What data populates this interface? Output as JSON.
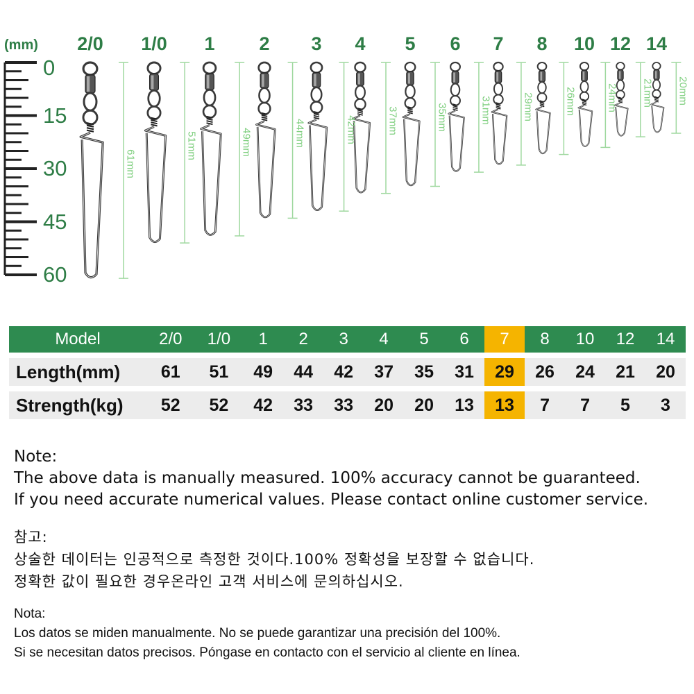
{
  "top_figure": {
    "unit": "(mm)",
    "ruler_labels": [
      "0",
      "15",
      "30",
      "45",
      "60"
    ],
    "models": [
      "2/0",
      "1/0",
      "1",
      "2",
      "3",
      "4",
      "5",
      "6",
      "7",
      "8",
      "10",
      "12",
      "14"
    ],
    "lengths_mm": [
      61,
      51,
      49,
      44,
      42,
      37,
      35,
      31,
      29,
      26,
      24,
      21,
      20
    ],
    "dimension_labels": [
      "61mm",
      "51mm",
      "49mm",
      "44mm",
      "42mm",
      "37mm",
      "35mm",
      "31mm",
      "29mm",
      "26mm",
      "24mm",
      "21mm",
      "20mm"
    ],
    "accent_color": "#2e7d46",
    "dimension_color": "#9fd89f"
  },
  "table": {
    "header_label": "Model",
    "models": [
      "2/0",
      "1/0",
      "1",
      "2",
      "3",
      "4",
      "5",
      "6",
      "7",
      "8",
      "10",
      "12",
      "14"
    ],
    "highlight_model": "7",
    "rows": [
      {
        "label": "Length(mm)",
        "values": [
          "61",
          "51",
          "49",
          "44",
          "42",
          "37",
          "35",
          "31",
          "29",
          "26",
          "24",
          "21",
          "20"
        ]
      },
      {
        "label": "Strength(kg)",
        "values": [
          "52",
          "52",
          "42",
          "33",
          "33",
          "20",
          "20",
          "13",
          "13",
          "7",
          "7",
          "5",
          "3"
        ]
      }
    ],
    "header_color": "#2e8b50",
    "highlight_color": "#f5b400"
  },
  "notes": {
    "en": {
      "title": "Note:",
      "line1": "The above data is manually measured. 100% accuracy cannot be guaranteed.",
      "line2": "If you need accurate numerical values. Please contact online customer service."
    },
    "ko": {
      "title": "참고:",
      "line1": "상술한 데이터는 인공적으로 측정한 것이다.100% 정확성을 보장할 수 없습니다.",
      "line2": "정확한 값이 필요한 경우온라인 고객 서비스에 문의하십시오."
    },
    "es": {
      "title": "Nota:",
      "line1": "Los datos se miden manualmente. No se puede garantizar una precisión del 100%.",
      "line2": "Si se necesitan datos precisos. Póngase en contacto con el servicio al cliente en línea."
    }
  }
}
